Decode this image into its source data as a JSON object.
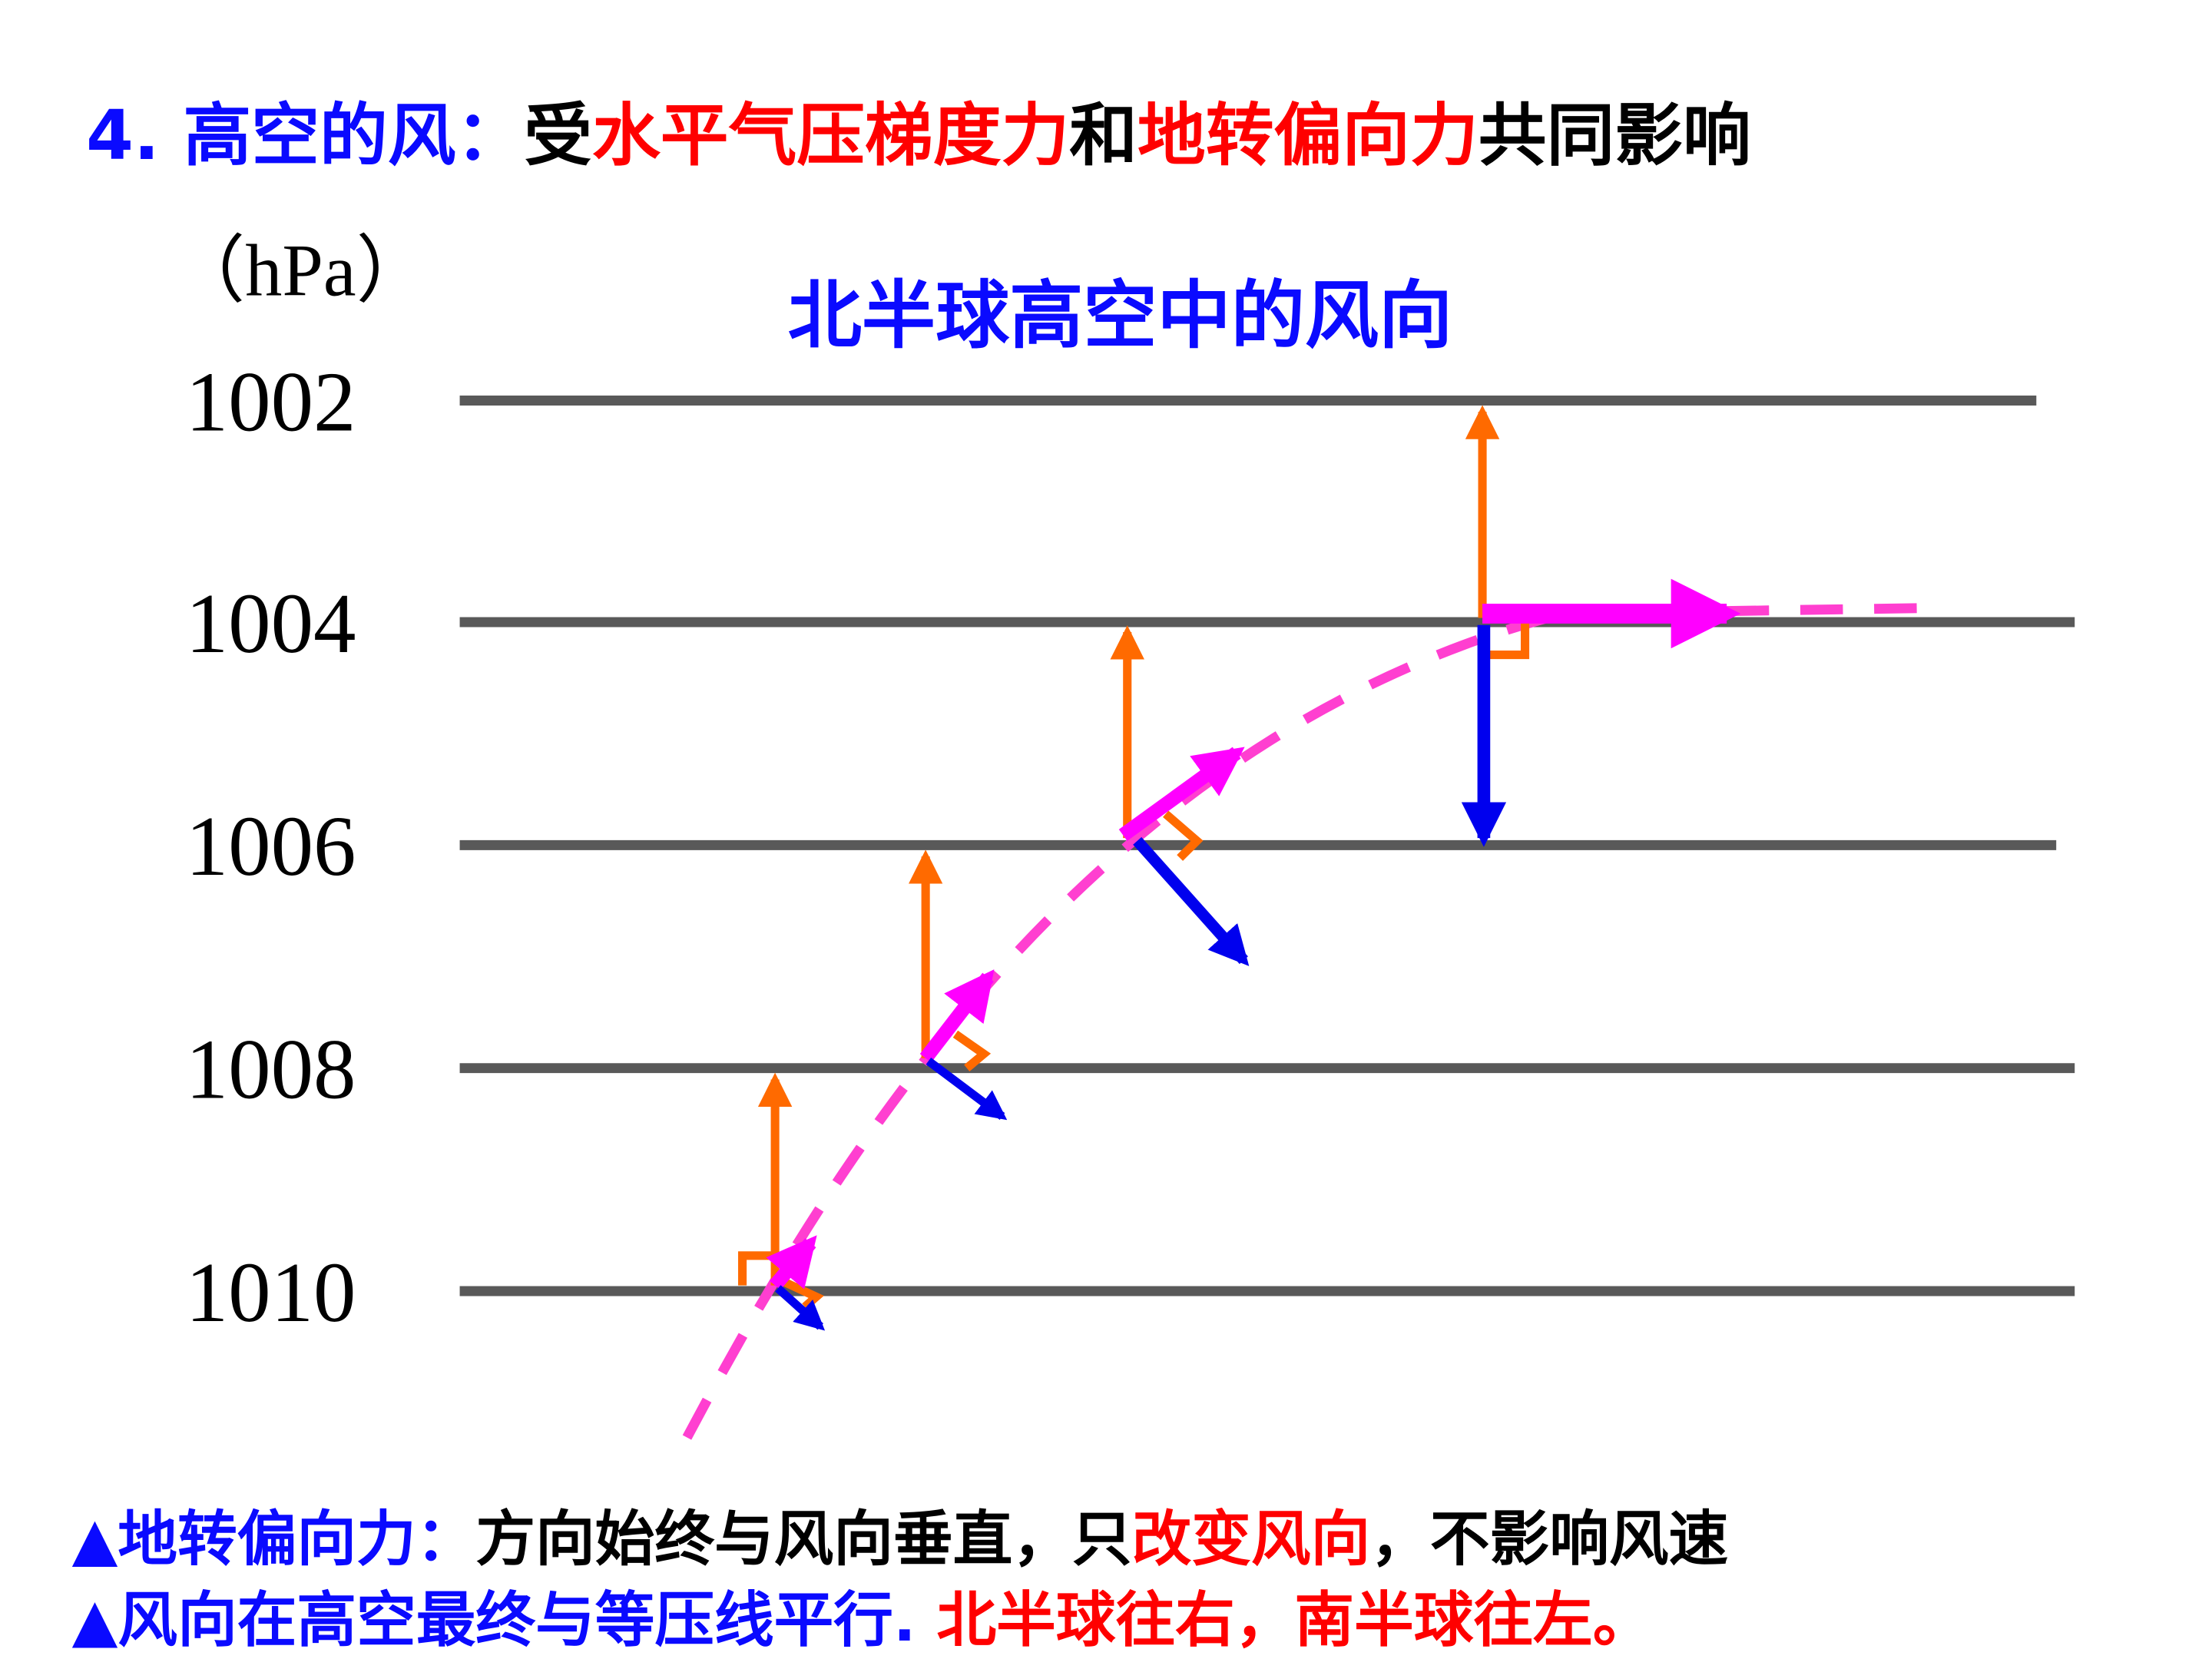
{
  "header": {
    "title": [
      "4. 高空的风：",
      "受",
      "水平气压梯度力",
      "和",
      "地转偏向力",
      "共同影响"
    ]
  },
  "diagram": {
    "unit": "（hPa）",
    "title": "北半球高空中的风向",
    "isobars": [
      "1002",
      "1004",
      "1006",
      "1008",
      "1010"
    ]
  },
  "notes": [
    [
      "▲地转偏向力：",
      "方向始终与风向垂直，只",
      "改变风向",
      "，不影响风速"
    ],
    [
      "▲风向在高空最终与等压线平行.",
      " 北半球往右，南半球往左。"
    ]
  ]
}
